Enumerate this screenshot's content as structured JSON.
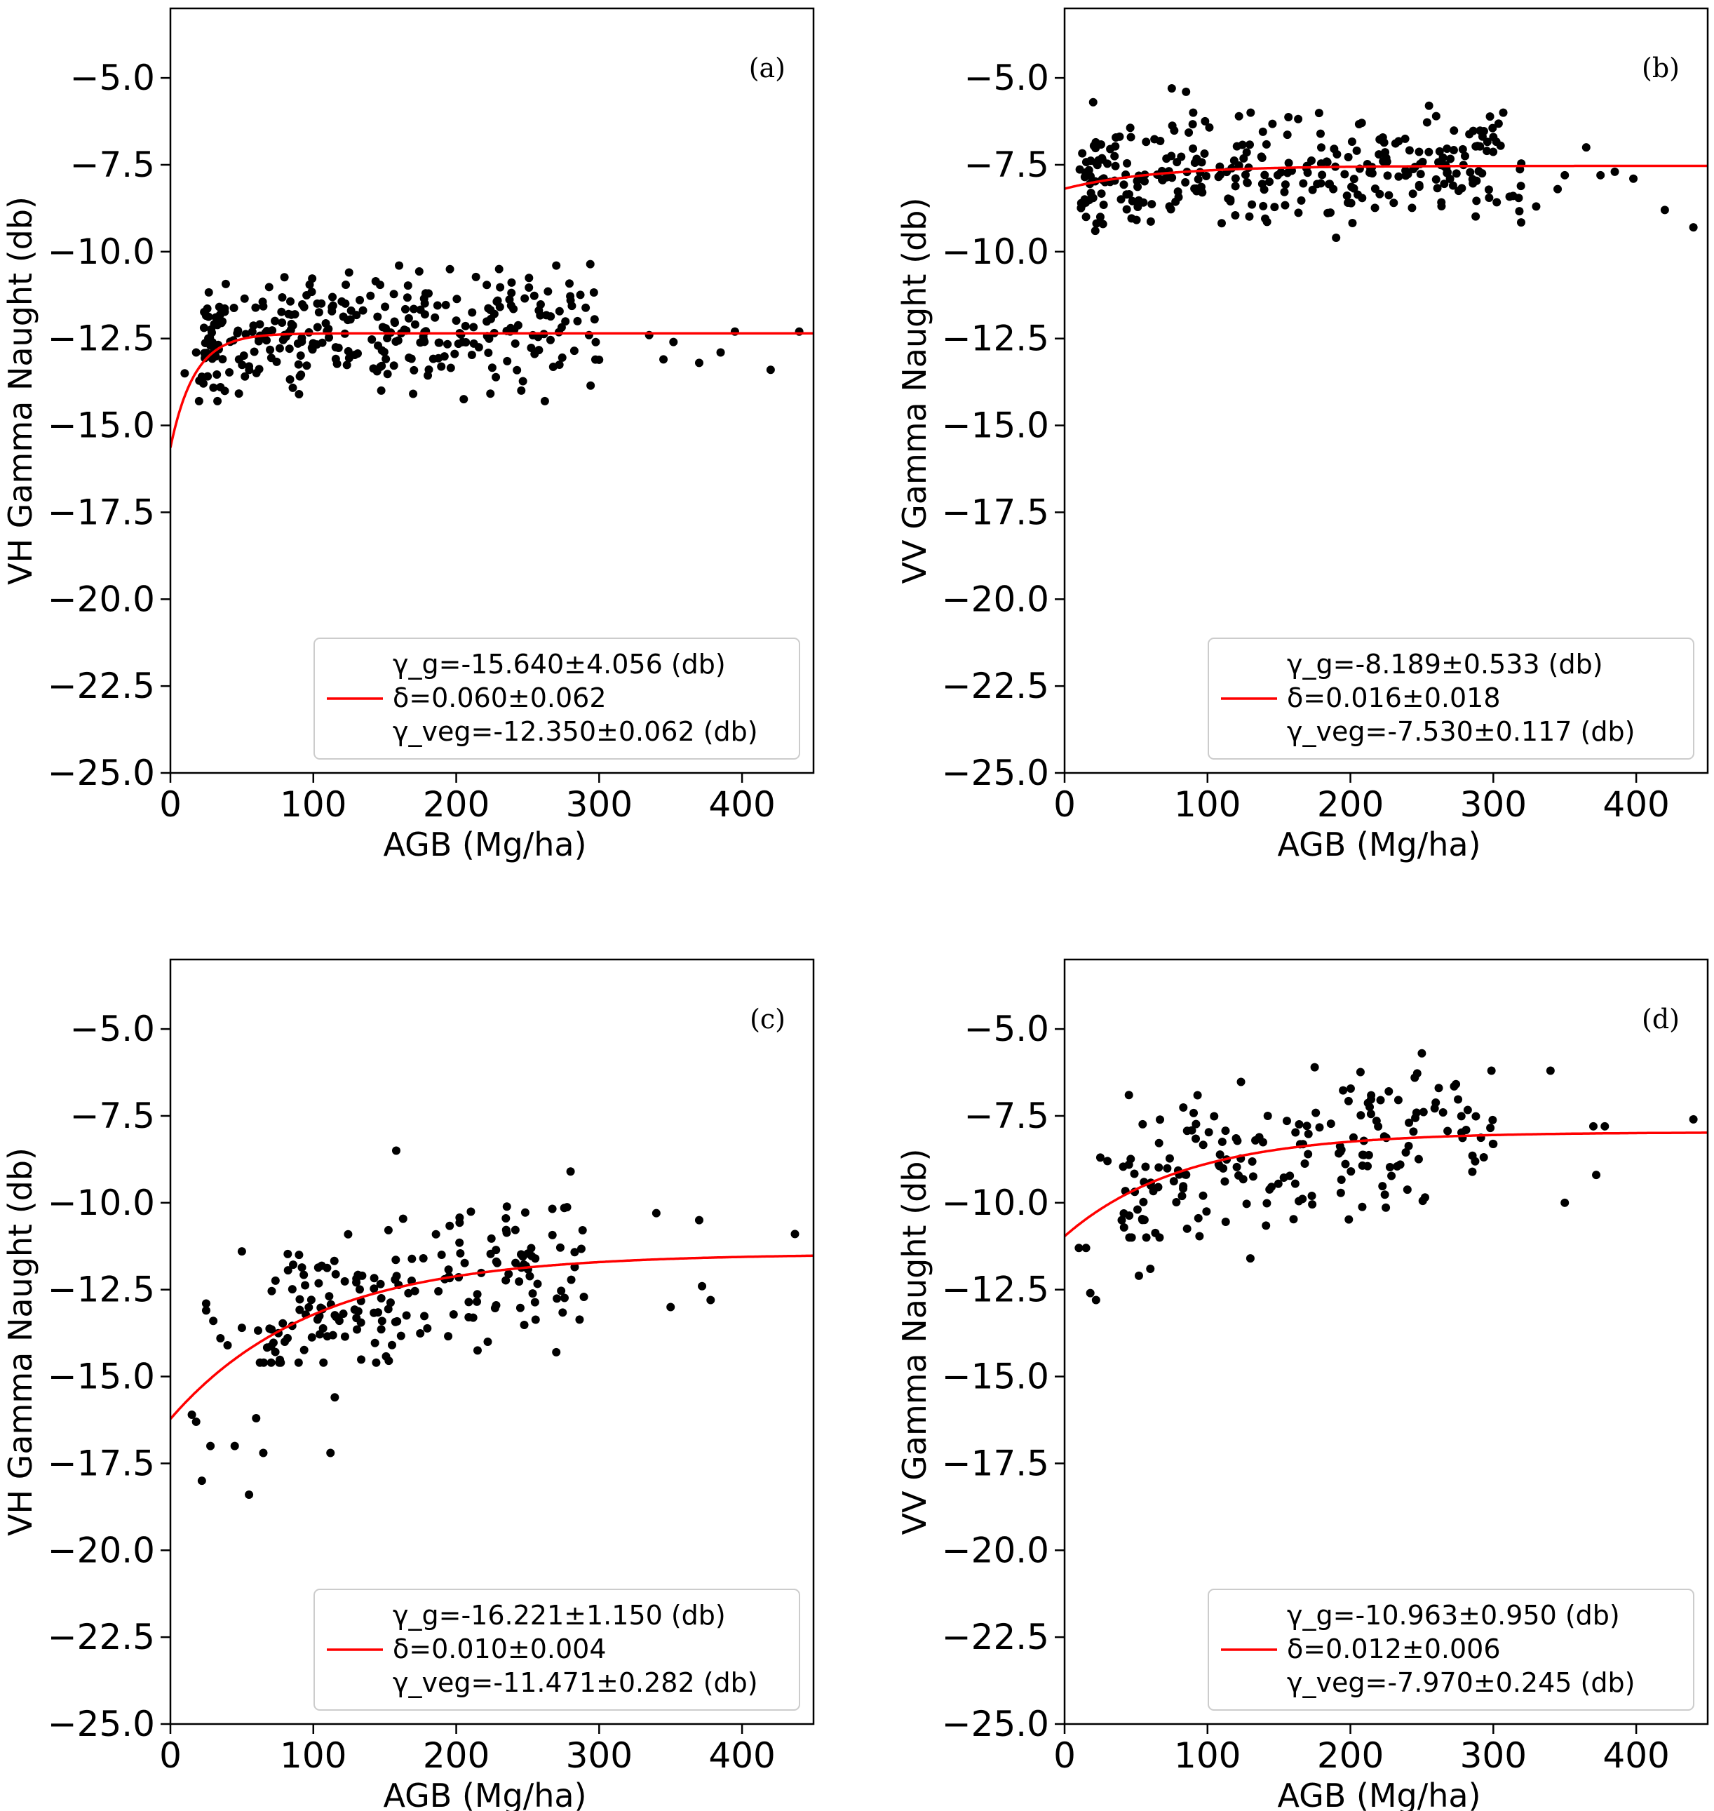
{
  "colors": {
    "fit": "#ff0000",
    "points": "#000000",
    "frame": "#000000"
  },
  "chart_data": [
    {
      "type": "scatter",
      "panel": "(a)",
      "xlabel": "AGB (Mg/ha)",
      "ylabel": "VH Gamma Naught (db)",
      "xlim": [
        0,
        450
      ],
      "ylim": [
        -25,
        -3
      ],
      "xticks": [
        0,
        100,
        200,
        300,
        400
      ],
      "yticks": [
        -25.0,
        -22.5,
        -20.0,
        -17.5,
        -15.0,
        -12.5,
        -10.0,
        -7.5,
        -5.0
      ],
      "legend_position": "lower-right",
      "legend": [
        "γ_g=-15.640±4.056 (db)",
        "δ=0.060±0.062",
        "γ_veg=-12.350±0.062 (db)"
      ],
      "fit": {
        "gamma_g": -15.64,
        "delta": 0.06,
        "gamma_veg": -12.35
      },
      "seed": 11,
      "n": 300,
      "cluster": {
        "xmin": 20,
        "xmax": 300,
        "ymin": -14.3,
        "ymax": -10.3
      },
      "x": [
        10,
        18,
        22,
        28,
        35,
        48,
        55,
        62,
        335,
        345,
        352,
        370,
        385,
        395,
        420,
        440,
        280,
        262,
        270,
        160,
        90,
        125,
        230
      ],
      "y": [
        -13.5,
        -12.9,
        -13.6,
        -12.7,
        -13.9,
        -13.1,
        -13.3,
        -12.5,
        -12.4,
        -13.1,
        -12.6,
        -13.2,
        -12.9,
        -12.3,
        -13.4,
        -12.3,
        -11.4,
        -14.3,
        -10.4,
        -10.4,
        -14.1,
        -10.6,
        -10.5
      ]
    },
    {
      "type": "scatter",
      "panel": "(b)",
      "xlabel": "AGB (Mg/ha)",
      "ylabel": "VV Gamma Naught (db)",
      "xlim": [
        0,
        450
      ],
      "ylim": [
        -25,
        -3
      ],
      "xticks": [
        0,
        100,
        200,
        300,
        400
      ],
      "yticks": [
        -25.0,
        -22.5,
        -20.0,
        -17.5,
        -15.0,
        -12.5,
        -10.0,
        -7.5,
        -5.0
      ],
      "legend_position": "lower-right",
      "legend": [
        "γ_g=-8.189±0.533 (db)",
        "δ=0.016±0.018",
        "γ_veg=-7.530±0.117 (db)"
      ],
      "fit": {
        "gamma_g": -8.189,
        "delta": 0.016,
        "gamma_veg": -7.53
      },
      "seed": 23,
      "n": 300,
      "cluster": {
        "xmin": 10,
        "xmax": 320,
        "ymin": -9.4,
        "ymax": -6.0
      },
      "x": [
        20,
        15,
        25,
        75,
        85,
        90,
        350,
        365,
        375,
        385,
        398,
        420,
        440,
        330,
        345,
        300,
        190,
        255,
        260
      ],
      "y": [
        -5.7,
        -9.0,
        -9.0,
        -5.3,
        -5.4,
        -6.0,
        -7.8,
        -7.0,
        -7.8,
        -7.7,
        -7.9,
        -8.8,
        -9.3,
        -8.7,
        -8.2,
        -6.7,
        -9.6,
        -5.8,
        -6.1
      ]
    },
    {
      "type": "scatter",
      "panel": "(c)",
      "xlabel": "AGB (Mg/ha)",
      "ylabel": "VH Gamma Naught (db)",
      "xlim": [
        0,
        450
      ],
      "ylim": [
        -25,
        -3
      ],
      "xticks": [
        0,
        100,
        200,
        300,
        400
      ],
      "yticks": [
        -25.0,
        -22.5,
        -20.0,
        -17.5,
        -15.0,
        -12.5,
        -10.0,
        -7.5,
        -5.0
      ],
      "legend_position": "lower-right",
      "legend": [
        "γ_g=-16.221±1.150 (db)",
        "δ=0.010±0.004",
        "γ_veg=-11.471±0.282 (db)"
      ],
      "fit": {
        "gamma_g": -16.221,
        "delta": 0.01,
        "gamma_veg": -11.471
      },
      "seed": 37,
      "n": 180,
      "cluster": {
        "xmin": 60,
        "xmax": 290,
        "ymin": -14.6,
        "ymax": -10.0
      },
      "x": [
        15,
        18,
        22,
        25,
        28,
        30,
        40,
        45,
        50,
        55,
        60,
        65,
        80,
        90,
        112,
        115,
        158,
        270,
        280,
        340,
        350,
        370,
        372,
        378,
        437,
        25,
        35,
        50
      ],
      "y": [
        -16.1,
        -16.3,
        -18.0,
        -13.1,
        -17.0,
        -13.4,
        -14.1,
        -17.0,
        -11.4,
        -18.4,
        -16.2,
        -17.2,
        -14.0,
        -11.5,
        -17.2,
        -15.6,
        -8.5,
        -14.3,
        -9.1,
        -10.3,
        -13.0,
        -10.5,
        -12.4,
        -12.8,
        -10.9,
        -12.9,
        -13.9,
        -13.6
      ]
    },
    {
      "type": "scatter",
      "panel": "(d)",
      "xlabel": "AGB (Mg/ha)",
      "ylabel": "VV Gamma Naught (db)",
      "xlim": [
        0,
        450
      ],
      "ylim": [
        -25,
        -3
      ],
      "xticks": [
        0,
        100,
        200,
        300,
        400
      ],
      "yticks": [
        -25.0,
        -22.5,
        -20.0,
        -17.5,
        -15.0,
        -12.5,
        -10.0,
        -7.5,
        -5.0
      ],
      "legend_position": "lower-right",
      "legend": [
        "γ_g=-10.963±0.950 (db)",
        "δ=0.012±0.006",
        "γ_veg=-7.970±0.245 (db)"
      ],
      "fit": {
        "gamma_g": -10.963,
        "delta": 0.012,
        "gamma_veg": -7.97
      },
      "seed": 53,
      "n": 180,
      "cluster": {
        "xmin": 40,
        "xmax": 300,
        "ymin": -11.0,
        "ymax": -6.2
      },
      "x": [
        15,
        18,
        22,
        25,
        30,
        40,
        45,
        52,
        60,
        10,
        250,
        340,
        350,
        370,
        372,
        378,
        440,
        130,
        175,
        245
      ],
      "y": [
        -11.3,
        -12.6,
        -12.8,
        -8.7,
        -8.8,
        -10.5,
        -6.9,
        -12.1,
        -11.9,
        -11.3,
        -5.7,
        -6.2,
        -10.0,
        -7.8,
        -9.2,
        -7.8,
        -7.6,
        -11.6,
        -6.1,
        -6.4
      ]
    }
  ]
}
